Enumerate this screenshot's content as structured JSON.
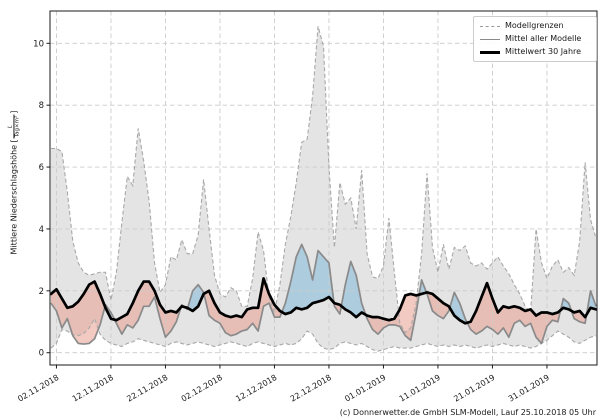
{
  "figure": {
    "caption": "(c) Donnerwetter.de GmbH SLM-Modell, Lauf 25.10.2018 05 Uhr",
    "y_label_prefix": "Mittlere Niederschlagshöhe [",
    "y_unit_numerator": "L",
    "y_unit_denominator": "Tag×m²",
    "y_label_suffix": "]"
  },
  "legend": {
    "items": [
      {
        "label": "Modellgrenzen",
        "style": "dashed-gray"
      },
      {
        "label": "Mittel aller Modelle",
        "style": "solid-gray"
      },
      {
        "label": "Mittelwert 30 Jahre",
        "style": "thick-black"
      }
    ]
  },
  "chart_data": {
    "type": "line",
    "x_unit": "days, daily values starting 01.11.2018",
    "x_tick_days": [
      1,
      11,
      21,
      31,
      41,
      51,
      61,
      71,
      81,
      91
    ],
    "x_tick_labels": [
      "02.11.2018",
      "12.11.2018",
      "22.11.2018",
      "02.12.2018",
      "12.12.2018",
      "22.12.2018",
      "01.01.2019",
      "11.01.2019",
      "21.01.2019",
      "31.01.2019"
    ],
    "y_ticks": [
      0,
      2,
      4,
      6,
      8,
      10
    ],
    "ylim": [
      -0.4,
      11.05
    ],
    "grid": true,
    "legend_position": "upper right",
    "colors": {
      "envelope_fill": "#e4e4e4",
      "envelope_border": "#a8a8a8",
      "grid": "#cbcbcb",
      "fill_model_below_mean30": "#e89f8f",
      "fill_model_above_mean30": "#7fb8d9",
      "model_mean_line": "#8a8a8a",
      "mean30_line": "#000000",
      "spine": "#1a1a1a"
    },
    "series": [
      {
        "name": "Modellgrenzen max",
        "values": [
          6.6,
          6.6,
          6.5,
          5.2,
          3.6,
          2.9,
          2.6,
          2.5,
          2.55,
          2.6,
          2.6,
          1.7,
          2.6,
          4.2,
          5.7,
          5.4,
          7.25,
          6.2,
          4.9,
          2.9,
          1.95,
          2.2,
          3.1,
          3.0,
          3.65,
          3.2,
          3.2,
          3.8,
          5.6,
          4.0,
          2.5,
          1.9,
          1.8,
          2.1,
          2.0,
          1.5,
          1.5,
          2.4,
          3.9,
          3.3,
          1.8,
          1.3,
          2.2,
          3.5,
          4.4,
          5.5,
          6.8,
          6.9,
          8.3,
          10.55,
          9.9,
          6.0,
          3.4,
          5.5,
          4.8,
          5.0,
          4.0,
          5.9,
          3.2,
          2.45,
          2.4,
          2.8,
          4.35,
          2.6,
          0.95,
          0.65,
          0.8,
          1.6,
          3.2,
          5.8,
          3.4,
          2.6,
          3.5,
          2.7,
          3.4,
          3.3,
          3.45,
          2.9,
          2.8,
          2.9,
          2.7,
          2.9,
          3.1,
          2.8,
          2.55,
          2.2,
          1.9,
          1.5,
          1.3,
          4.0,
          2.9,
          2.4,
          2.8,
          3.0,
          2.6,
          2.75,
          2.5,
          3.6,
          6.15,
          4.3,
          3.7
        ]
      },
      {
        "name": "Modellgrenzen min",
        "values": [
          0.15,
          0.3,
          0.75,
          0.7,
          0.58,
          0.55,
          0.62,
          0.8,
          1.1,
          0.6,
          0.4,
          0.3,
          0.25,
          0.2,
          0.3,
          0.35,
          0.45,
          0.4,
          0.35,
          0.3,
          0.25,
          0.2,
          0.3,
          0.35,
          0.3,
          0.25,
          0.3,
          0.35,
          0.3,
          0.25,
          0.2,
          0.25,
          0.3,
          0.35,
          0.3,
          0.25,
          0.2,
          0.3,
          0.35,
          0.3,
          0.25,
          0.2,
          0.25,
          0.3,
          0.25,
          0.3,
          0.45,
          0.7,
          0.6,
          0.3,
          0.15,
          0.1,
          0.15,
          0.3,
          0.35,
          0.3,
          0.25,
          0.3,
          0.2,
          0.1,
          0.05,
          0.1,
          0.15,
          0.2,
          0.15,
          0.15,
          0.15,
          0.2,
          0.25,
          0.3,
          0.25,
          0.2,
          0.25,
          0.2,
          0.25,
          0.2,
          0.25,
          0.2,
          0.15,
          0.2,
          0.25,
          0.2,
          0.25,
          0.3,
          0.25,
          0.2,
          0.25,
          0.2,
          0.15,
          0.2,
          0.3,
          0.4,
          0.55,
          0.7,
          0.6,
          0.5,
          0.35,
          0.3,
          0.4,
          0.5,
          0.55
        ]
      },
      {
        "name": "Mittel aller Modelle",
        "values": [
          1.6,
          1.35,
          0.8,
          1.1,
          0.55,
          0.3,
          0.28,
          0.3,
          0.45,
          0.9,
          1.55,
          1.3,
          0.95,
          0.6,
          0.9,
          0.8,
          1.05,
          1.5,
          1.5,
          1.8,
          1.1,
          0.5,
          0.7,
          1.0,
          1.55,
          1.4,
          2.0,
          2.2,
          1.95,
          1.2,
          1.05,
          0.95,
          0.65,
          0.55,
          0.6,
          0.7,
          0.75,
          0.95,
          0.7,
          1.5,
          1.6,
          1.15,
          1.15,
          1.6,
          2.3,
          3.1,
          3.5,
          3.1,
          2.35,
          3.3,
          3.1,
          2.9,
          1.5,
          1.25,
          2.2,
          2.95,
          2.5,
          1.6,
          1.1,
          0.75,
          0.6,
          0.8,
          0.9,
          0.9,
          0.85,
          0.55,
          0.4,
          1.3,
          2.35,
          1.9,
          1.35,
          1.2,
          1.1,
          1.35,
          1.95,
          1.6,
          1.1,
          0.75,
          0.6,
          0.7,
          0.85,
          0.75,
          0.6,
          0.8,
          0.5,
          0.95,
          1.05,
          0.85,
          0.95,
          0.5,
          0.3,
          0.85,
          1.05,
          1.0,
          1.75,
          1.6,
          1.1,
          1.0,
          0.95,
          2.0,
          1.5
        ]
      },
      {
        "name": "Mittelwert 30 Jahre",
        "values": [
          1.9,
          2.05,
          1.75,
          1.45,
          1.5,
          1.65,
          1.9,
          2.2,
          2.3,
          1.9,
          1.45,
          1.1,
          1.05,
          1.15,
          1.25,
          1.6,
          2.0,
          2.3,
          2.3,
          2.0,
          1.55,
          1.3,
          1.35,
          1.3,
          1.5,
          1.45,
          1.35,
          1.5,
          1.9,
          2.0,
          1.6,
          1.3,
          1.2,
          1.15,
          1.2,
          1.15,
          1.4,
          1.45,
          1.45,
          2.4,
          1.9,
          1.55,
          1.35,
          1.25,
          1.3,
          1.45,
          1.4,
          1.45,
          1.6,
          1.65,
          1.7,
          1.8,
          1.6,
          1.55,
          1.4,
          1.3,
          1.15,
          1.3,
          1.2,
          1.15,
          1.15,
          1.1,
          1.05,
          1.1,
          1.4,
          1.85,
          1.9,
          1.85,
          1.9,
          1.95,
          1.9,
          1.75,
          1.6,
          1.5,
          1.2,
          1.05,
          0.95,
          1.0,
          1.35,
          1.8,
          2.25,
          1.75,
          1.3,
          1.5,
          1.45,
          1.5,
          1.45,
          1.35,
          1.4,
          1.2,
          1.3,
          1.3,
          1.25,
          1.3,
          1.45,
          1.4,
          1.3,
          1.35,
          1.15,
          1.45,
          1.4
        ]
      }
    ]
  }
}
